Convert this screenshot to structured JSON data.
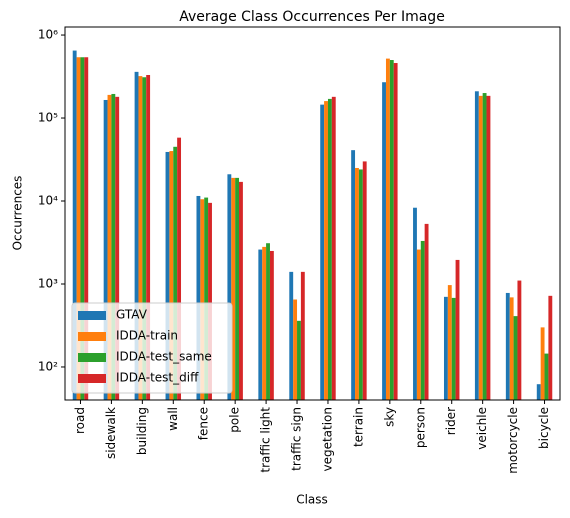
{
  "chart_data": {
    "type": "bar",
    "title": "Average Class Occurrences Per Image",
    "x_label": "Class",
    "y_label": "Occurrences",
    "categories": [
      "road",
      "sidewalk",
      "building",
      "wall",
      "fence",
      "pole",
      "traffic light",
      "traffic sign",
      "vegetation",
      "terrain",
      "sky",
      "person",
      "rider",
      "veichle",
      "motorcycle",
      "bicycle"
    ],
    "series": [
      {
        "name": "GTAV",
        "color": "#1f77b4",
        "values": [
          650000,
          165000,
          360000,
          39000,
          11500,
          21000,
          2600,
          1400,
          145000,
          41000,
          270000,
          8300,
          700,
          210000,
          780,
          62
        ]
      },
      {
        "name": "IDDA-train",
        "color": "#ff7f0e",
        "values": [
          540000,
          190000,
          320000,
          40000,
          10500,
          19000,
          2800,
          650,
          160000,
          25000,
          520000,
          2600,
          970,
          185000,
          690,
          300
        ]
      },
      {
        "name": "IDDA-test_same",
        "color": "#2ca02c",
        "values": [
          540000,
          195000,
          310000,
          45000,
          11000,
          19000,
          3100,
          360,
          170000,
          24000,
          500000,
          3300,
          680,
          200000,
          410,
          145
        ]
      },
      {
        "name": "IDDA-test_diff",
        "color": "#d62728",
        "values": [
          540000,
          180000,
          330000,
          58000,
          9500,
          17000,
          2500,
          1400,
          180000,
          30000,
          460000,
          5300,
          1950,
          185000,
          1100,
          720
        ]
      }
    ],
    "ylim": [
      40,
      1250000
    ],
    "log_y": true,
    "yticks": [
      {
        "value": 100,
        "label": "10²"
      },
      {
        "value": 1000,
        "label": "10³"
      },
      {
        "value": 10000,
        "label": "10⁴"
      },
      {
        "value": 100000,
        "label": "10⁵"
      },
      {
        "value": 1000000,
        "label": "10⁶"
      }
    ],
    "legend": "lower left"
  }
}
